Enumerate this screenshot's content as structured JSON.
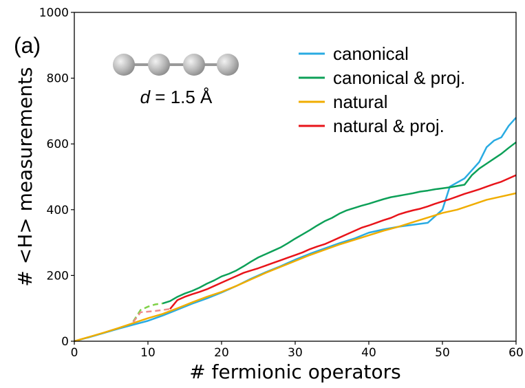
{
  "chart_data": {
    "type": "line",
    "panel_label": "(a)",
    "xlabel": "# fermionic operators",
    "ylabel": "# <H> measurements",
    "xlim": [
      0,
      60
    ],
    "ylim": [
      0,
      1000
    ],
    "xticks": [
      0,
      10,
      20,
      30,
      40,
      50,
      60
    ],
    "yticks": [
      0,
      200,
      400,
      600,
      800,
      1000
    ],
    "grid": false,
    "legend_position": "top-right",
    "inset": {
      "molecule": "linear chain of 4 atoms",
      "var": "d",
      "rest": " = 1.5 Å"
    },
    "series": [
      {
        "name": "canonical",
        "color": "#29abe2",
        "x": [
          0,
          2,
          4,
          6,
          8,
          10,
          12,
          14,
          16,
          18,
          20,
          22,
          24,
          26,
          28,
          30,
          32,
          34,
          36,
          38,
          40,
          42,
          44,
          46,
          48,
          50,
          51,
          53,
          54,
          55,
          56,
          57,
          58,
          59,
          60
        ],
        "values": [
          0,
          12,
          25,
          38,
          50,
          62,
          78,
          96,
          114,
          130,
          148,
          168,
          190,
          210,
          228,
          248,
          266,
          282,
          298,
          312,
          330,
          340,
          348,
          354,
          360,
          400,
          470,
          495,
          520,
          545,
          590,
          610,
          620,
          655,
          680
        ]
      },
      {
        "name": "canonical & proj.",
        "color": "#0da058",
        "dashed_x": [
          8,
          9,
          10,
          11,
          12
        ],
        "dashed_values": [
          60,
          95,
          105,
          112,
          115
        ],
        "x": [
          12,
          13,
          14,
          15,
          16,
          17,
          18,
          19,
          20,
          21,
          22,
          23,
          24,
          25,
          26,
          27,
          28,
          29,
          30,
          31,
          32,
          33,
          34,
          35,
          36,
          37,
          38,
          39,
          40,
          41,
          42,
          43,
          44,
          45,
          46,
          47,
          48,
          49,
          50,
          51,
          52,
          53,
          54,
          55,
          56,
          57,
          58,
          59,
          60
        ],
        "values": [
          115,
          122,
          135,
          145,
          153,
          163,
          175,
          185,
          197,
          205,
          215,
          228,
          242,
          255,
          265,
          275,
          285,
          298,
          312,
          325,
          338,
          352,
          365,
          375,
          388,
          398,
          405,
          412,
          418,
          425,
          432,
          438,
          442,
          446,
          450,
          455,
          458,
          462,
          465,
          468,
          472,
          476,
          505,
          525,
          540,
          555,
          570,
          588,
          605
        ]
      },
      {
        "name": "natural",
        "color": "#f0ad00",
        "x": [
          0,
          2,
          4,
          6,
          8,
          10,
          12,
          14,
          16,
          18,
          20,
          22,
          24,
          26,
          28,
          30,
          32,
          34,
          36,
          38,
          40,
          42,
          44,
          46,
          48,
          50,
          52,
          54,
          56,
          58,
          60
        ],
        "values": [
          0,
          13,
          26,
          40,
          55,
          70,
          83,
          100,
          118,
          135,
          150,
          168,
          188,
          208,
          226,
          244,
          262,
          278,
          294,
          308,
          322,
          336,
          348,
          362,
          376,
          390,
          400,
          415,
          430,
          440,
          450
        ]
      },
      {
        "name": "natural & proj.",
        "color": "#e8141a",
        "dashed_x": [
          8,
          9,
          10,
          11,
          12,
          13
        ],
        "dashed_values": [
          58,
          88,
          90,
          92,
          95,
          98
        ],
        "x": [
          13,
          14,
          15,
          16,
          17,
          18,
          19,
          20,
          21,
          22,
          23,
          24,
          25,
          26,
          27,
          28,
          29,
          30,
          31,
          32,
          33,
          34,
          35,
          36,
          37,
          38,
          39,
          40,
          41,
          42,
          43,
          44,
          45,
          46,
          47,
          48,
          49,
          50,
          51,
          52,
          53,
          54,
          55,
          56,
          57,
          58,
          59,
          60
        ],
        "values": [
          98,
          125,
          135,
          143,
          150,
          158,
          168,
          178,
          188,
          198,
          208,
          215,
          222,
          230,
          238,
          246,
          254,
          262,
          270,
          280,
          288,
          295,
          305,
          315,
          325,
          335,
          345,
          352,
          360,
          368,
          375,
          385,
          392,
          398,
          403,
          410,
          418,
          425,
          432,
          440,
          448,
          455,
          462,
          470,
          478,
          485,
          495,
          505
        ]
      }
    ]
  },
  "dashed_colors": {
    "canonical & proj.": "#7fd147",
    "natural & proj.": "#ef8c8c"
  }
}
